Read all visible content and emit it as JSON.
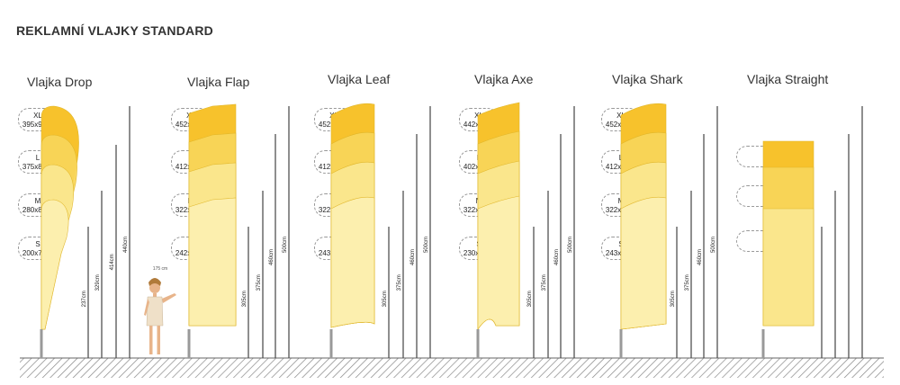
{
  "title": "REKLAMNÍ VLAJKY STANDARD",
  "person_height": "175 cm",
  "flags": [
    {
      "name": "Vlajka Drop",
      "sizes": [
        {
          "label": "XL",
          "dim": "395x95"
        },
        {
          "label": "L",
          "dim": "375x85"
        },
        {
          "label": "M",
          "dim": "280x85"
        },
        {
          "label": "S",
          "dim": "200x75"
        }
      ],
      "heights": [
        "237cm",
        "329cm",
        "414cm",
        "440cm"
      ]
    },
    {
      "name": "Vlajka Flap",
      "sizes": [
        {
          "label": "XL",
          "dim": "452x89"
        },
        {
          "label": "L",
          "dim": "412x89"
        },
        {
          "label": "M",
          "dim": "322x82"
        },
        {
          "label": "S",
          "dim": "242x60"
        }
      ],
      "heights": [
        "305cm",
        "375cm",
        "460cm",
        "500cm"
      ]
    },
    {
      "name": "Vlajka Leaf",
      "sizes": [
        {
          "label": "XL",
          "dim": "452x89"
        },
        {
          "label": "L",
          "dim": "412x89"
        },
        {
          "label": "M",
          "dim": "322x82"
        },
        {
          "label": "S",
          "dim": "243x60"
        }
      ],
      "heights": [
        "305cm",
        "375cm",
        "460cm",
        "500cm"
      ]
    },
    {
      "name": "Vlajka Axe",
      "sizes": [
        {
          "label": "XL",
          "dim": "442x89"
        },
        {
          "label": "L",
          "dim": "402x89"
        },
        {
          "label": "M",
          "dim": "322x82"
        },
        {
          "label": "S",
          "dim": "230x60"
        }
      ],
      "heights": [
        "305cm",
        "375cm",
        "460cm",
        "500cm"
      ]
    },
    {
      "name": "Vlajka Shark",
      "sizes": [
        {
          "label": "XL",
          "dim": "452x89"
        },
        {
          "label": "L",
          "dim": "412x89"
        },
        {
          "label": "M",
          "dim": "322x82"
        },
        {
          "label": "S",
          "dim": "243x60"
        }
      ],
      "heights": [
        "305cm",
        "375cm",
        "460cm",
        "500cm"
      ]
    },
    {
      "name": "Vlajka Straight",
      "sizes": [],
      "heights": []
    }
  ],
  "unit": "cm",
  "colors": {
    "flag_dark": "#f7c22c",
    "flag_mid": "#f9d659",
    "flag_light": "#fbe88f",
    "flag_pale": "#fdf0b0",
    "pole": "#444444",
    "ground": "#888888"
  }
}
